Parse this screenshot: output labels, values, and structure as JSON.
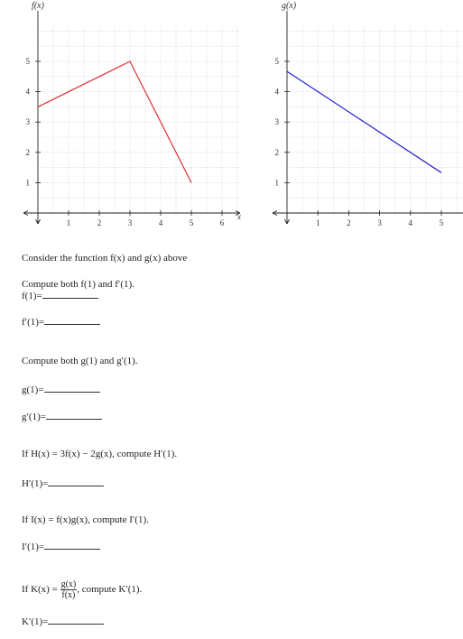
{
  "chart_data": [
    {
      "type": "line",
      "title": "f(x)",
      "xlabel": "x",
      "ylabel": "",
      "xticks": [
        1,
        2,
        3,
        4,
        5,
        6
      ],
      "yticks": [
        1,
        2,
        3,
        4,
        5
      ],
      "xlim": [
        0,
        6.5
      ],
      "ylim": [
        0,
        6
      ],
      "grid": true,
      "series": [
        {
          "color": "#e03030",
          "x": [
            0,
            3,
            5
          ],
          "y": [
            3.5,
            5,
            1
          ]
        }
      ]
    },
    {
      "type": "line",
      "title": "g(x)",
      "xlabel": "",
      "ylabel": "",
      "xticks": [
        1,
        2,
        3,
        4,
        5
      ],
      "yticks": [
        1,
        2,
        3,
        4,
        5
      ],
      "xlim": [
        0,
        5.6
      ],
      "ylim": [
        0,
        6
      ],
      "grid": true,
      "series": [
        {
          "color": "#2222cc",
          "x": [
            0,
            5
          ],
          "y": [
            4.67,
            1.33
          ]
        }
      ]
    }
  ],
  "text": {
    "intro": "Consider the function f(x) and g(x) above",
    "q1": "Compute both f(1) and f′(1).",
    "a1": "f(1)=",
    "a2": "f′(1)=",
    "q2": "Compute both g(1) and g′(1).",
    "a3": "g(1)=",
    "a4": "g′(1)=",
    "q3": "If H(x) = 3f(x) − 2g(x), compute H′(1).",
    "a5": "H′(1)=",
    "q4": "If I(x) = f(x)g(x), compute I′(1).",
    "a6": "I′(1)=",
    "q5_prefix": "If K(x) =",
    "q5_num": "g(x)",
    "q5_den": "f(x)",
    "q5_suffix": ", compute K′(1).",
    "a7": "K′(1)="
  }
}
